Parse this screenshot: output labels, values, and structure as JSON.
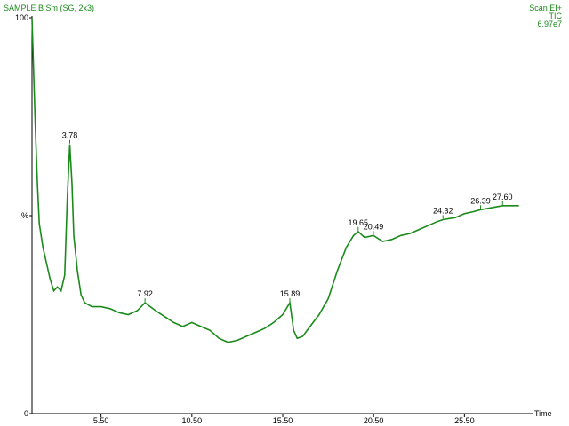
{
  "chart_data": {
    "type": "line",
    "title": "SAMPLE B Sm (SG, 2x3)",
    "scan": "Scan EI+",
    "trace": "TIC",
    "intensity": "6.97e7",
    "x_label": "Time",
    "color": "#1a8a1a",
    "xlim": [
      1.7,
      29.3
    ],
    "ylim": [
      0,
      100
    ],
    "xticks": [
      {
        "value": 5.5,
        "label": "5.50"
      },
      {
        "value": 10.5,
        "label": "10.50"
      },
      {
        "value": 15.5,
        "label": "15.50"
      },
      {
        "value": 20.5,
        "label": "20.50"
      },
      {
        "value": 25.5,
        "label": "25.50"
      }
    ],
    "yticks": [
      0,
      {
        "value": 50,
        "label": "%"
      },
      100
    ],
    "x": [
      1.7,
      1.8,
      1.9,
      2.0,
      2.1,
      2.3,
      2.5,
      2.7,
      2.9,
      3.1,
      3.3,
      3.5,
      3.65,
      3.78,
      3.9,
      4.0,
      4.2,
      4.4,
      4.6,
      5.0,
      5.5,
      6.0,
      6.5,
      7.0,
      7.5,
      7.92,
      8.5,
      9.0,
      9.5,
      10.0,
      10.5,
      11.0,
      11.5,
      12.0,
      12.5,
      13.0,
      13.5,
      14.0,
      14.5,
      15.0,
      15.5,
      15.89,
      16.1,
      16.3,
      16.6,
      17.0,
      17.5,
      18.0,
      18.5,
      19.0,
      19.4,
      19.65,
      20.0,
      20.49,
      21.0,
      21.5,
      22.0,
      22.5,
      23.0,
      23.5,
      24.0,
      24.32,
      25.0,
      25.5,
      26.0,
      26.39,
      27.0,
      27.6,
      28.0,
      28.5
    ],
    "values": [
      100,
      85,
      70,
      58,
      48,
      42,
      38,
      34,
      31,
      32,
      31,
      35,
      55,
      68,
      58,
      45,
      36,
      30,
      28,
      27,
      27,
      26.5,
      25.5,
      25,
      26,
      28,
      26,
      24.5,
      23,
      22,
      23,
      22,
      21,
      19,
      18,
      18.5,
      19.5,
      20.5,
      21.5,
      23,
      25,
      28,
      21,
      19,
      19.5,
      22,
      25,
      29,
      36,
      42,
      45,
      46,
      44.5,
      45,
      43.5,
      44,
      45,
      45.5,
      46.5,
      47.5,
      48.5,
      49,
      49.5,
      50.5,
      51,
      51.5,
      52,
      52.5,
      52.5,
      52.5
    ],
    "peaks": {
      "x": [
        3.78,
        7.92,
        15.89,
        19.65,
        20.49,
        24.32,
        26.39,
        27.6
      ],
      "y": [
        68,
        28,
        28,
        46,
        45,
        49,
        51.5,
        52.5
      ],
      "labels": [
        "3.78",
        "7.92",
        "15.89",
        "19.65",
        "20.49",
        "24.32",
        "26.39",
        "27.60"
      ]
    }
  }
}
